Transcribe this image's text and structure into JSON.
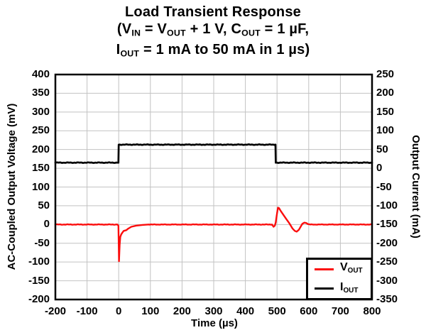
{
  "figure": {
    "title_plain": "Load Transient Response (VIN = VOUT + 1 V, COUT = 1 µF, IOUT = 1 mA to 50 mA in 1 µs)",
    "colors": {
      "vout_red": "#fb0d0d",
      "iout_black": "#000000",
      "grid": "#c2c2c2",
      "border": "#000000",
      "background": "#ffffff",
      "text": "#000000"
    }
  },
  "chart_data": {
    "type": "line",
    "title_lines": [
      [
        {
          "t": "Load Transient Response"
        }
      ],
      [
        {
          "t": "(V"
        },
        {
          "t": "IN",
          "sub": true
        },
        {
          "t": " = V"
        },
        {
          "t": "OUT",
          "sub": true
        },
        {
          "t": " + 1 V, C"
        },
        {
          "t": "OUT",
          "sub": true
        },
        {
          "t": " = 1 µF,"
        }
      ],
      [
        {
          "t": "I"
        },
        {
          "t": "OUT",
          "sub": true
        },
        {
          "t": " = 1 mA to 50 mA in 1 µs)"
        }
      ]
    ],
    "grid": true,
    "axes": {
      "x": {
        "label": "Time (µs)",
        "min": -200,
        "max": 800,
        "ticks": [
          -200,
          -100,
          0,
          100,
          200,
          300,
          400,
          500,
          600,
          700,
          800
        ]
      },
      "left": {
        "label": "AC-Coupled Output Voltage (mV)",
        "min": -200,
        "max": 400,
        "ticks": [
          400,
          350,
          300,
          250,
          200,
          150,
          100,
          50,
          0,
          -50,
          -100,
          -150,
          -200
        ]
      },
      "right": {
        "label": "Output Current (mA)",
        "min": -350,
        "max": 250,
        "ticks": [
          250,
          200,
          150,
          100,
          50,
          0,
          -50,
          -100,
          -150,
          -200,
          -250,
          -300,
          -350
        ]
      }
    },
    "legend": {
      "position": "bottom-right",
      "entries": [
        {
          "main": "V",
          "sub": "OUT",
          "series": "vout"
        },
        {
          "main": "I",
          "sub": "OUT",
          "series": "iout"
        }
      ]
    },
    "series": [
      {
        "id": "vout",
        "name": "VOUT",
        "axis": "left",
        "unit": "mV",
        "color": "#fb0d0d",
        "width": 2.4,
        "noise": 0.7,
        "points": [
          [
            -200,
            0
          ],
          [
            -4,
            0
          ],
          [
            -1,
            -3
          ],
          [
            1,
            -98
          ],
          [
            3,
            -55
          ],
          [
            5,
            -33
          ],
          [
            8,
            -26
          ],
          [
            12,
            -21
          ],
          [
            16,
            -17
          ],
          [
            24,
            -15
          ],
          [
            30,
            -11
          ],
          [
            40,
            -6
          ],
          [
            55,
            -3
          ],
          [
            75,
            -1
          ],
          [
            95,
            0
          ],
          [
            484,
            0
          ],
          [
            489,
            -6
          ],
          [
            493,
            -3
          ],
          [
            496,
            6
          ],
          [
            500,
            30
          ],
          [
            503,
            45
          ],
          [
            506,
            44
          ],
          [
            511,
            37
          ],
          [
            519,
            27
          ],
          [
            529,
            15
          ],
          [
            539,
            3
          ],
          [
            549,
            -11
          ],
          [
            556,
            -17
          ],
          [
            562,
            -19
          ],
          [
            569,
            -14
          ],
          [
            575,
            -5
          ],
          [
            580,
            2
          ],
          [
            586,
            5
          ],
          [
            592,
            4
          ],
          [
            598,
            1
          ],
          [
            606,
            0
          ],
          [
            800,
            0
          ]
        ]
      },
      {
        "id": "iout",
        "name": "IOUT",
        "axis": "right",
        "unit": "mA",
        "color": "#000000",
        "width": 2.7,
        "noise": 0.9,
        "points": [
          [
            -200,
            15
          ],
          [
            -1,
            15
          ],
          [
            0,
            63
          ],
          [
            495,
            63
          ],
          [
            496,
            15
          ],
          [
            800,
            15
          ]
        ]
      }
    ]
  }
}
